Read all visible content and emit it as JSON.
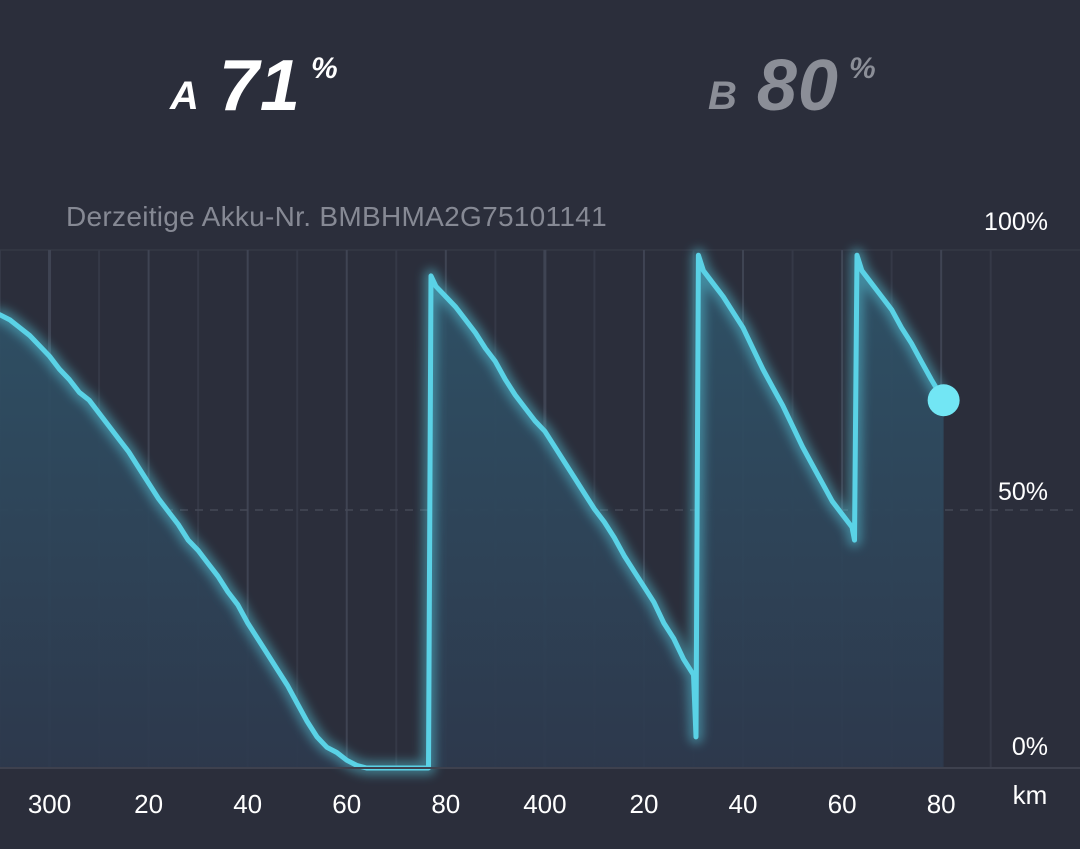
{
  "header": {
    "battery_a": {
      "letter": "A",
      "value": "71",
      "unit": "%"
    },
    "battery_b": {
      "letter": "B",
      "value": "80",
      "unit": "%"
    }
  },
  "current_battery_label": "Derzeitige Akku-Nr. BMBHMA2G75101141",
  "colors": {
    "background": "#2b2e3b",
    "line": "#5ad2e6",
    "marker": "#72e6f4",
    "area_top": "#2f5368",
    "area_bottom": "#2d394d",
    "battery_b_text": "#8b8e97"
  },
  "chart_data": {
    "type": "area",
    "ylim": [
      0,
      100
    ],
    "yticks": [
      {
        "label": "100%",
        "value": 100
      },
      {
        "label": "50%",
        "value": 50
      },
      {
        "label": "0%",
        "value": 0
      }
    ],
    "xlabel": "km",
    "xlim": [
      290,
      505
    ],
    "xticks": [
      {
        "label": "300",
        "value": 300
      },
      {
        "label": "20",
        "value": 320
      },
      {
        "label": "40",
        "value": 340
      },
      {
        "label": "60",
        "value": 360
      },
      {
        "label": "80",
        "value": 380
      },
      {
        "label": "400",
        "value": 400
      },
      {
        "label": "20",
        "value": 420
      },
      {
        "label": "40",
        "value": 440
      },
      {
        "label": "60",
        "value": 460
      },
      {
        "label": "80",
        "value": 480
      }
    ],
    "series": [
      {
        "x": [
          290,
          292,
          294,
          296,
          298,
          300,
          302,
          304,
          306,
          308,
          310,
          312,
          314,
          316,
          318,
          320,
          322,
          324,
          326,
          328,
          330,
          332,
          334,
          336,
          338,
          340,
          342,
          344,
          346,
          348,
          350,
          352,
          354,
          356,
          358,
          360,
          362,
          364,
          366,
          368,
          370,
          372,
          374,
          376,
          376.5,
          377,
          378,
          380,
          382,
          384,
          386,
          388,
          390,
          392,
          394,
          396,
          398,
          400,
          402,
          404,
          406,
          408,
          410,
          412,
          414,
          416,
          418,
          420,
          422,
          424,
          426,
          428,
          430,
          430.5,
          431,
          432,
          434,
          436,
          438,
          440,
          442,
          444,
          446,
          448,
          450,
          452,
          454,
          456,
          458,
          460,
          462,
          462.5,
          463,
          464,
          466,
          468,
          470,
          472,
          474,
          476,
          478,
          480.5
        ],
        "y": [
          87.5,
          86.5,
          85,
          83.5,
          81.5,
          79.5,
          77,
          75,
          72.5,
          71,
          68.5,
          66,
          63.5,
          61,
          58,
          55,
          52,
          49.5,
          47,
          44,
          42,
          39.5,
          37,
          34,
          31.5,
          28,
          25,
          22,
          19,
          16,
          12.5,
          9,
          6,
          4,
          3,
          1.5,
          0.5,
          0,
          0,
          0,
          0,
          0,
          0,
          0,
          0,
          95,
          93,
          91,
          89,
          86.5,
          84,
          81,
          78.5,
          75,
          72,
          69.5,
          67,
          65,
          62,
          59,
          56,
          53,
          50,
          47.5,
          44.5,
          41,
          38,
          35,
          32,
          28,
          25,
          21,
          18,
          6,
          99,
          96,
          93.5,
          91,
          88,
          85,
          81,
          77,
          73.5,
          70,
          66,
          62,
          58.5,
          55,
          51.5,
          49,
          46.5,
          44,
          99,
          96,
          93.5,
          91,
          88.5,
          85,
          82,
          78.5,
          75,
          71
        ]
      }
    ],
    "current_point": {
      "x": 480.5,
      "y": 71
    }
  }
}
